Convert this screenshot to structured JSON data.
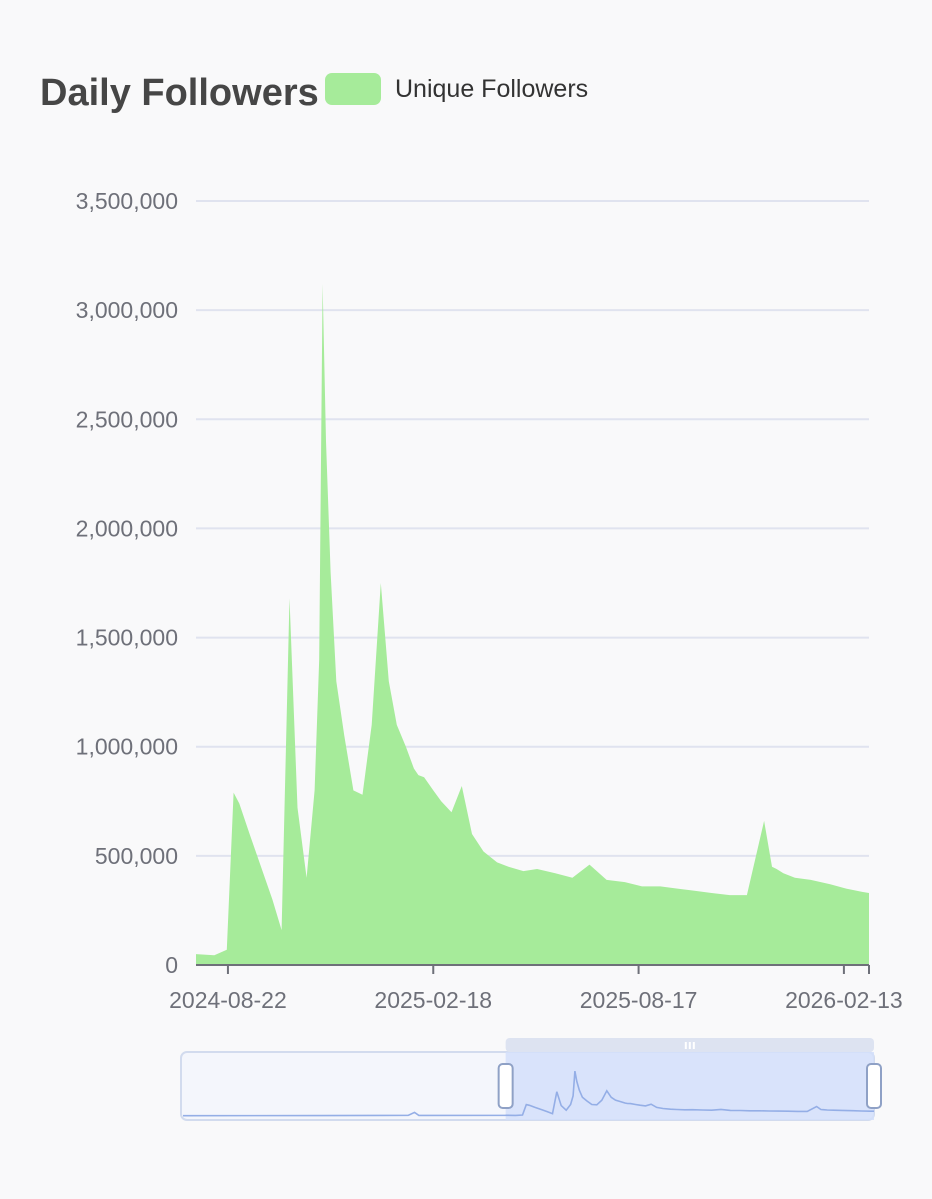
{
  "chart_data": {
    "type": "bar",
    "title": "Daily Followers",
    "legend": {
      "position": "top",
      "entries": [
        {
          "name": "Unique Followers",
          "color": "#a6eb9a"
        }
      ]
    },
    "grid": true,
    "xlabel": "",
    "ylabel": "",
    "ylim": [
      0,
      3500000
    ],
    "y_ticks": [
      "0",
      "500,000",
      "1,000,000",
      "1,500,000",
      "2,000,000",
      "2,500,000",
      "3,000,000",
      "3,500,000"
    ],
    "y_tick_values": [
      0,
      500000,
      1000000,
      1500000,
      2000000,
      2500000,
      3000000,
      3500000
    ],
    "xlim": [
      "2024-07-25",
      "2026-03-07"
    ],
    "x_ticks": [
      "2024-08-22",
      "2025-02-18",
      "2025-08-17",
      "2026-02-13"
    ],
    "series": [
      {
        "name": "Unique Followers",
        "color": "#a6eb9a",
        "x": [
          "2024-07-25",
          "2024-08-10",
          "2024-08-21",
          "2024-08-27",
          "2024-09-01",
          "2024-09-10",
          "2024-09-20",
          "2024-09-30",
          "2024-10-08",
          "2024-10-15",
          "2024-10-22",
          "2024-10-30",
          "2024-11-06",
          "2024-11-10",
          "2024-11-13",
          "2024-11-16",
          "2024-11-20",
          "2024-11-25",
          "2024-12-02",
          "2024-12-10",
          "2024-12-18",
          "2024-12-26",
          "2025-01-03",
          "2025-01-10",
          "2025-01-17",
          "2025-01-25",
          "2025-02-01",
          "2025-02-05",
          "2025-02-10",
          "2025-02-18",
          "2025-02-25",
          "2025-03-06",
          "2025-03-15",
          "2025-03-24",
          "2025-04-03",
          "2025-04-15",
          "2025-04-25",
          "2025-05-08",
          "2025-05-20",
          "2025-06-05",
          "2025-06-20",
          "2025-07-05",
          "2025-07-20",
          "2025-08-05",
          "2025-08-20",
          "2025-09-05",
          "2025-09-20",
          "2025-10-05",
          "2025-10-20",
          "2025-11-05",
          "2025-11-20",
          "2025-12-05",
          "2025-12-12",
          "2025-12-16",
          "2025-12-22",
          "2026-01-01",
          "2026-01-15",
          "2026-02-01",
          "2026-02-15",
          "2026-03-01",
          "2026-03-07"
        ],
        "values": [
          50000,
          45000,
          70000,
          790000,
          740000,
          600000,
          450000,
          300000,
          160000,
          1680000,
          720000,
          400000,
          800000,
          1400000,
          3120000,
          2400000,
          1800000,
          1300000,
          1050000,
          800000,
          780000,
          1100000,
          1750000,
          1300000,
          1100000,
          1000000,
          900000,
          870000,
          860000,
          800000,
          750000,
          700000,
          820000,
          600000,
          520000,
          470000,
          450000,
          430000,
          440000,
          420000,
          400000,
          460000,
          390000,
          380000,
          360000,
          360000,
          350000,
          340000,
          330000,
          320000,
          320000,
          660000,
          450000,
          440000,
          420000,
          400000,
          390000,
          370000,
          350000,
          335000,
          330000
        ]
      }
    ],
    "navigator": {
      "window": [
        "2024-07-25",
        "2026-03-07"
      ],
      "handle_icon": "grip-icon"
    }
  }
}
